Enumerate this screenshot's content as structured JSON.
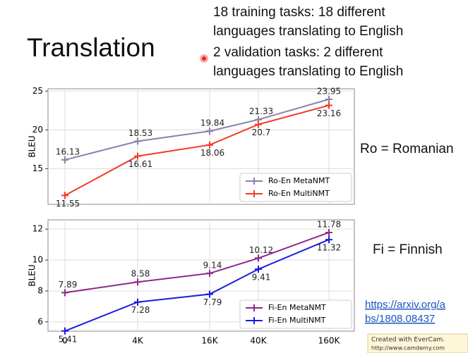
{
  "title": "Translation",
  "bullets": [
    "18 training tasks: 18 different",
    "languages translating to English",
    "2 validation tasks: 2 different",
    "languages translating to English"
  ],
  "notes": [
    "Ro = Romanian",
    "Fi = Finnish"
  ],
  "link": [
    "https://arxiv.org/a",
    "bs/1808.08437"
  ],
  "watermark": [
    "Created with EverCam.",
    "http://www.camdemy.com"
  ],
  "chart_data": [
    {
      "type": "line",
      "y_label": "BLEU",
      "categories": [
        null,
        null,
        null,
        null,
        null
      ],
      "ylim": [
        10.4,
        25.3
      ],
      "yticks": [
        15,
        20,
        25
      ],
      "grid": true,
      "legend": "lower right",
      "series": [
        {
          "name": "Ro-En MetaNMT",
          "color": "#8a80aa",
          "values": [
            16.13,
            18.53,
            19.84,
            21.33,
            23.95
          ]
        },
        {
          "name": "Ro-En MultiNMT",
          "color": "#f23a26",
          "values": [
            11.55,
            16.61,
            18.06,
            20.7,
            23.16
          ]
        }
      ]
    },
    {
      "type": "line",
      "y_label": "BLEU",
      "categories": [
        "0",
        "4K",
        "16K",
        "40K",
        "160K"
      ],
      "ylim": [
        5.4,
        12.6
      ],
      "yticks": [
        6,
        8,
        10,
        12
      ],
      "grid": true,
      "legend": "lower right",
      "series": [
        {
          "name": "Fi-En MetaNMT",
          "color": "#8c2a8c",
          "values": [
            7.89,
            8.58,
            9.14,
            10.12,
            11.78
          ]
        },
        {
          "name": "Fi-En MultiNMT",
          "color": "#1b1be0",
          "values": [
            5.41,
            7.28,
            7.79,
            9.41,
            11.32
          ]
        }
      ]
    }
  ]
}
